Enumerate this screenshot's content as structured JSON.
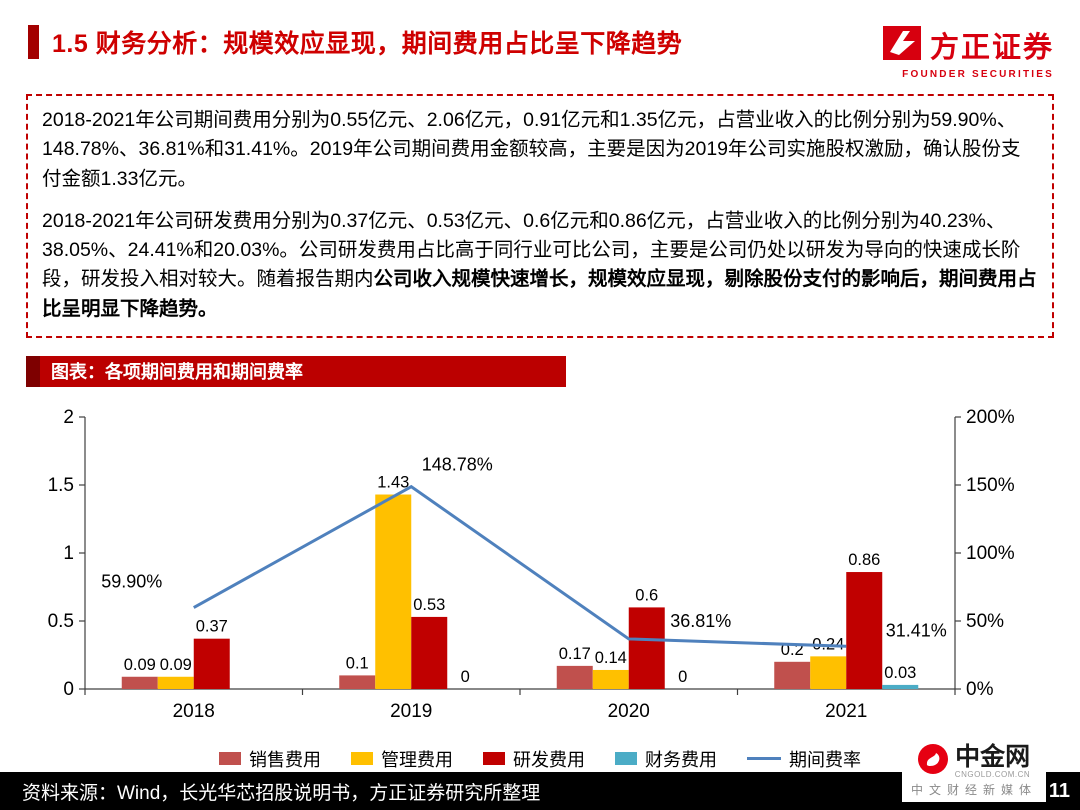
{
  "header": {
    "title": "1.5 财务分析：规模效应显现，期间费用占比呈下降趋势",
    "logo_cn": "方正证券",
    "logo_en": "FOUNDER SECURITIES"
  },
  "summary": {
    "para1": "2018-2021年公司期间费用分别为0.55亿元、2.06亿元，0.91亿元和1.35亿元，占营业收入的比例分别为59.90%、148.78%、36.81%和31.41%。2019年公司期间费用金额较高，主要是因为2019年公司实施股权激励，确认股份支付金额1.33亿元。",
    "para2_normal": "2018-2021年公司研发费用分别为0.37亿元、0.53亿元、0.6亿元和0.86亿元，占营业收入的比例分别为40.23%、38.05%、24.41%和20.03%。公司研发费用占比高于同行业可比公司，主要是公司仍处以研发为导向的快速成长阶段，研发投入相对较大。随着报告期内",
    "para2_bold": "公司收入规模快速增长，规模效应显现，剔除股份支付的影响后，期间费用占比呈明显下降趋势。"
  },
  "chart_header": "图表：各项期间费用和期间费率",
  "chart_data": {
    "type": "bar",
    "subtype": "grouped bars with overlay line",
    "title": "各项期间费用和期间费率",
    "categories": [
      "2018",
      "2019",
      "2020",
      "2021"
    ],
    "bar_series": [
      {
        "name": "销售费用",
        "color": "#C0504D",
        "values": [
          0.09,
          0.1,
          0.17,
          0.2
        ],
        "labels": [
          "0.09",
          "0.1",
          "0.17",
          "0.2"
        ]
      },
      {
        "name": "管理费用",
        "color": "#FFC000",
        "values": [
          0.09,
          1.43,
          0.14,
          0.24
        ],
        "labels": [
          "0.09",
          "1.43",
          "0.14",
          "0.24"
        ]
      },
      {
        "name": "研发费用",
        "color": "#C00000",
        "values": [
          0.37,
          0.53,
          0.6,
          0.86
        ],
        "labels": [
          "0.37",
          "0.53",
          "0.6",
          "0.86"
        ]
      },
      {
        "name": "财务费用",
        "color": "#4BACC6",
        "values": [
          0,
          0,
          0,
          0.03
        ],
        "labels": [
          "",
          "0",
          "0",
          "0.03"
        ]
      }
    ],
    "line_series": {
      "name": "期间费率",
      "color": "#4F81BD",
      "values_pct": [
        59.9,
        148.78,
        36.81,
        31.41
      ],
      "labels": [
        "59.90%",
        "148.78%",
        "36.81%",
        "31.41%"
      ]
    },
    "left_axis": {
      "min": 0,
      "max": 2,
      "ticks": [
        "0",
        "0.5",
        "1",
        "1.5",
        "2"
      ]
    },
    "right_axis": {
      "min": 0,
      "max": 200,
      "ticks": [
        "0%",
        "50%",
        "100%",
        "150%",
        "200%"
      ]
    },
    "grid": "off",
    "legend_position": "bottom"
  },
  "footer": {
    "source": "资料来源：Wind，长光华芯招股说明书，方正证券研究所整理",
    "page": "11"
  },
  "watermark": {
    "name_cn": "中金网",
    "domain": "CNGOLD.COM.CN",
    "tagline": "中文财经新媒体"
  },
  "colors": {
    "brand_red": "#D7000F",
    "title_red": "#CE0000",
    "chart_bar_red": "#BB0000",
    "footer_black": "#000000"
  }
}
